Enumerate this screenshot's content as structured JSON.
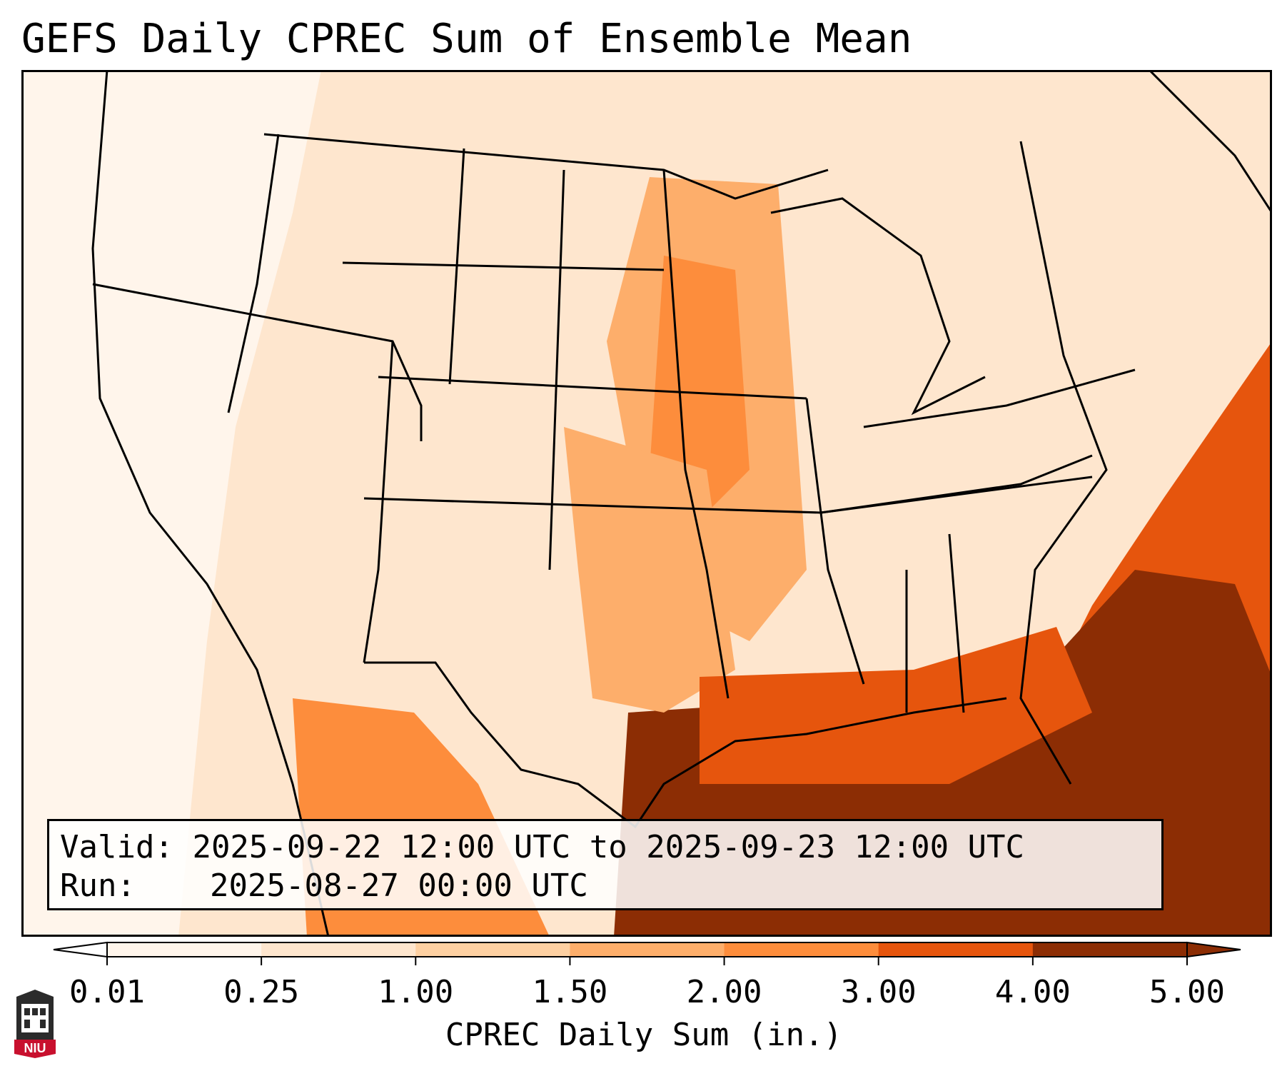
{
  "title": "GEFS Daily CPREC Sum of Ensemble Mean",
  "info": {
    "valid_label": "Valid:",
    "valid_value": "2025-09-22 12:00 UTC to 2025-09-23 12:00 UTC",
    "run_label": "Run:",
    "run_value": "2025-08-27 00:00 UTC"
  },
  "colorbar": {
    "label": "CPREC Daily Sum (in.)",
    "ticks": [
      "0.01",
      "0.25",
      "1.00",
      "1.50",
      "2.00",
      "3.00",
      "4.00",
      "5.00"
    ],
    "colors": [
      "#fff5eb",
      "#fee6ce",
      "#fdd0a2",
      "#fdae6b",
      "#fd8d3c",
      "#e6550d",
      "#8c2d04"
    ]
  },
  "logo_text": "NIU"
}
